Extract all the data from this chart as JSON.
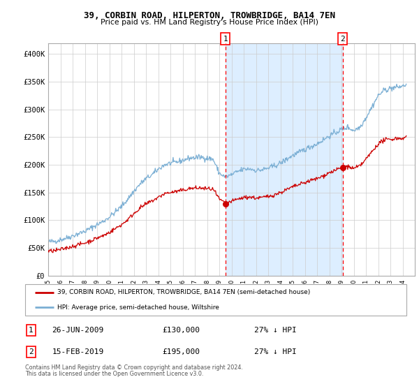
{
  "title": "39, CORBIN ROAD, HILPERTON, TROWBRIDGE, BA14 7EN",
  "subtitle": "Price paid vs. HM Land Registry's House Price Index (HPI)",
  "legend_red": "39, CORBIN ROAD, HILPERTON, TROWBRIDGE, BA14 7EN (semi-detached house)",
  "legend_blue": "HPI: Average price, semi-detached house, Wiltshire",
  "event1_date": "26-JUN-2009",
  "event1_price": "£130,000",
  "event1_hpi": "27% ↓ HPI",
  "event2_date": "15-FEB-2019",
  "event2_price": "£195,000",
  "event2_hpi": "27% ↓ HPI",
  "footnote1": "Contains HM Land Registry data © Crown copyright and database right 2024.",
  "footnote2": "This data is licensed under the Open Government Licence v3.0.",
  "event1_year": 2009.5,
  "event2_year": 2019.1,
  "event1_price_val": 130000,
  "event2_price_val": 195000,
  "red_color": "#CC0000",
  "blue_color": "#7BAFD4",
  "span_color": "#DDEEFF",
  "grid_color": "#CCCCCC",
  "yticks": [
    0,
    50000,
    100000,
    150000,
    200000,
    250000,
    300000,
    350000,
    400000
  ],
  "ylabels": [
    "£0",
    "£50K",
    "£100K",
    "£150K",
    "£200K",
    "£250K",
    "£300K",
    "£350K",
    "£400K"
  ],
  "xstart": 1995,
  "xend": 2025,
  "ylim_max": 420000,
  "hpi_years": [
    1995,
    1995.5,
    1996,
    1996.5,
    1997,
    1997.5,
    1998,
    1998.5,
    1999,
    1999.5,
    2000,
    2000.5,
    2001,
    2001.5,
    2002,
    2002.5,
    2003,
    2003.5,
    2004,
    2004.5,
    2005,
    2005.5,
    2006,
    2006.5,
    2007,
    2007.5,
    2008,
    2008.5,
    2009,
    2009.5,
    2010,
    2010.5,
    2011,
    2011.5,
    2012,
    2012.5,
    2013,
    2013.5,
    2014,
    2014.5,
    2015,
    2015.5,
    2016,
    2016.5,
    2017,
    2017.5,
    2018,
    2018.5,
    2019,
    2019.5,
    2020,
    2020.5,
    2021,
    2021.5,
    2022,
    2022.5,
    2023,
    2023.5,
    2024,
    2024.3
  ],
  "hpi_vals": [
    61000,
    62000,
    65000,
    68000,
    72000,
    76000,
    80000,
    86000,
    92000,
    98000,
    106000,
    115000,
    125000,
    138000,
    152000,
    165000,
    175000,
    182000,
    192000,
    200000,
    203000,
    205000,
    208000,
    212000,
    213000,
    214000,
    212000,
    210000,
    185000,
    178000,
    182000,
    188000,
    192000,
    193000,
    190000,
    191000,
    194000,
    198000,
    203000,
    210000,
    217000,
    222000,
    228000,
    233000,
    238000,
    245000,
    252000,
    258000,
    264000,
    268000,
    262000,
    268000,
    285000,
    305000,
    325000,
    335000,
    338000,
    340000,
    342000,
    345000
  ],
  "red_years": [
    1995,
    1995.5,
    1996,
    1996.5,
    1997,
    1997.5,
    1998,
    1998.5,
    1999,
    1999.5,
    2000,
    2000.5,
    2001,
    2001.5,
    2002,
    2002.5,
    2003,
    2003.5,
    2004,
    2004.5,
    2005,
    2005.5,
    2006,
    2006.5,
    2007,
    2007.5,
    2008,
    2008.5,
    2009,
    2009.5,
    2010,
    2010.5,
    2011,
    2011.5,
    2012,
    2012.5,
    2013,
    2013.5,
    2014,
    2014.5,
    2015,
    2015.5,
    2016,
    2016.5,
    2017,
    2017.5,
    2018,
    2018.5,
    2019,
    2019.5,
    2020,
    2020.5,
    2021,
    2021.5,
    2022,
    2022.5,
    2023,
    2023.5,
    2024,
    2024.3
  ],
  "red_vals": [
    44000,
    45000,
    47000,
    50000,
    53000,
    56000,
    59000,
    63000,
    68000,
    72000,
    78000,
    85000,
    92000,
    101000,
    112000,
    122000,
    129000,
    135000,
    141000,
    148000,
    150000,
    152000,
    154000,
    157000,
    158000,
    158000,
    157000,
    156000,
    138000,
    130000,
    134000,
    138000,
    141000,
    142000,
    140000,
    141000,
    143000,
    146000,
    150000,
    155000,
    160000,
    164000,
    168000,
    172000,
    175000,
    180000,
    186000,
    190000,
    195000,
    197000,
    193000,
    198000,
    210000,
    224000,
    238000,
    245000,
    246000,
    248000,
    248000,
    250000
  ]
}
